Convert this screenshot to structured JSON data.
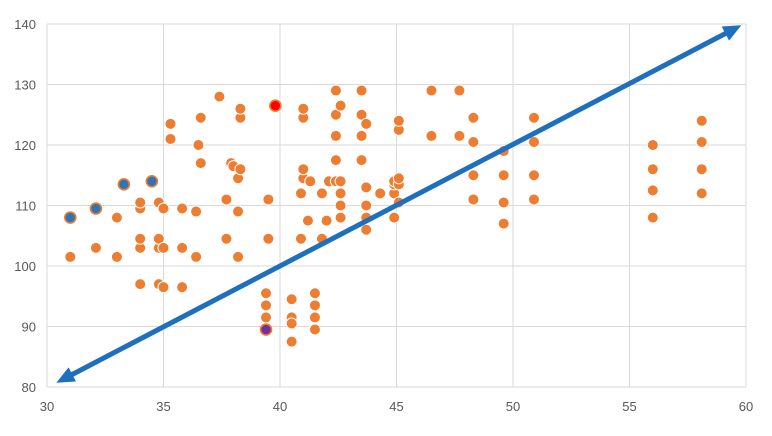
{
  "chart_data": {
    "type": "scatter",
    "xlim": [
      30,
      60
    ],
    "ylim": [
      80,
      140
    ],
    "x_ticks": [
      30,
      35,
      40,
      45,
      50,
      55,
      60
    ],
    "y_ticks": [
      80,
      90,
      100,
      110,
      120,
      130,
      140
    ],
    "grid": true,
    "colors": {
      "point_fill": "#ED7D31",
      "point_stroke": "#FFFFFF",
      "highlight_blue_fill": "#2E75B6",
      "highlight_blue_stroke": "#ED7D31",
      "highlight_red_fill": "#FF0000",
      "highlight_purple_fill": "#7030A0",
      "arrow": "#1F6FBF",
      "grid": "#D9D9D9",
      "tick_text": "#595959"
    },
    "points": [
      [
        31.0,
        101.5
      ],
      [
        32.1,
        103.0
      ],
      [
        33.0,
        101.5
      ],
      [
        33.0,
        108.0
      ],
      [
        34.0,
        97.0
      ],
      [
        34.0,
        103.0
      ],
      [
        34.0,
        104.5
      ],
      [
        34.0,
        109.5
      ],
      [
        34.0,
        110.5
      ],
      [
        34.8,
        97.0
      ],
      [
        34.8,
        103.0
      ],
      [
        34.8,
        104.5
      ],
      [
        34.8,
        110.5
      ],
      [
        35.0,
        96.5
      ],
      [
        35.0,
        103.0
      ],
      [
        35.0,
        109.5
      ],
      [
        35.3,
        121.0
      ],
      [
        35.3,
        123.5
      ],
      [
        35.8,
        96.5
      ],
      [
        35.8,
        103.0
      ],
      [
        35.8,
        109.5
      ],
      [
        36.4,
        101.5
      ],
      [
        36.4,
        109.0
      ],
      [
        36.5,
        120.0
      ],
      [
        36.6,
        124.5
      ],
      [
        36.6,
        117.0
      ],
      [
        37.4,
        128.0
      ],
      [
        37.7,
        104.5
      ],
      [
        37.7,
        111.0
      ],
      [
        37.9,
        117.0
      ],
      [
        38.0,
        116.5
      ],
      [
        38.2,
        101.5
      ],
      [
        38.2,
        109.0
      ],
      [
        38.2,
        114.5
      ],
      [
        38.3,
        116.0
      ],
      [
        38.3,
        124.5
      ],
      [
        38.3,
        126.0
      ],
      [
        39.5,
        104.5
      ],
      [
        39.5,
        111.0
      ],
      [
        39.4,
        95.5
      ],
      [
        39.4,
        93.5
      ],
      [
        39.4,
        91.5
      ],
      [
        40.5,
        94.5
      ],
      [
        40.5,
        91.5
      ],
      [
        40.5,
        90.5
      ],
      [
        40.5,
        87.5
      ],
      [
        40.9,
        104.5
      ],
      [
        40.9,
        112.0
      ],
      [
        41.0,
        114.5
      ],
      [
        41.0,
        116.0
      ],
      [
        41.0,
        124.5
      ],
      [
        41.0,
        126.0
      ],
      [
        41.2,
        107.5
      ],
      [
        41.3,
        114.0
      ],
      [
        41.5,
        95.5
      ],
      [
        41.5,
        93.5
      ],
      [
        41.5,
        91.5
      ],
      [
        41.5,
        89.5
      ],
      [
        41.8,
        104.5
      ],
      [
        41.8,
        112.0
      ],
      [
        42.0,
        107.5
      ],
      [
        42.1,
        114.0
      ],
      [
        42.4,
        114.0
      ],
      [
        42.4,
        117.5
      ],
      [
        42.4,
        121.5
      ],
      [
        42.4,
        125.0
      ],
      [
        42.4,
        129.0
      ],
      [
        42.6,
        108.0
      ],
      [
        42.6,
        110.0
      ],
      [
        42.6,
        112.0
      ],
      [
        42.6,
        114.0
      ],
      [
        42.6,
        126.5
      ],
      [
        43.5,
        117.5
      ],
      [
        43.5,
        121.5
      ],
      [
        43.5,
        125.0
      ],
      [
        43.5,
        129.0
      ],
      [
        43.7,
        106.0
      ],
      [
        43.7,
        108.0
      ],
      [
        43.7,
        110.0
      ],
      [
        43.7,
        113.0
      ],
      [
        43.7,
        123.5
      ],
      [
        44.3,
        112.0
      ],
      [
        44.9,
        108.0
      ],
      [
        44.9,
        112.0
      ],
      [
        44.9,
        113.5
      ],
      [
        44.9,
        114.0
      ],
      [
        45.1,
        110.5
      ],
      [
        45.1,
        113.5
      ],
      [
        45.1,
        114.5
      ],
      [
        45.1,
        122.5
      ],
      [
        45.1,
        124.0
      ],
      [
        46.5,
        121.5
      ],
      [
        46.5,
        129.0
      ],
      [
        47.7,
        121.5
      ],
      [
        47.7,
        129.0
      ],
      [
        48.3,
        111.0
      ],
      [
        48.3,
        115.0
      ],
      [
        48.3,
        120.5
      ],
      [
        48.3,
        124.5
      ],
      [
        49.6,
        107.0
      ],
      [
        49.6,
        110.5
      ],
      [
        49.6,
        115.0
      ],
      [
        49.6,
        119.0
      ],
      [
        50.9,
        111.0
      ],
      [
        50.9,
        115.0
      ],
      [
        50.9,
        120.5
      ],
      [
        50.9,
        124.5
      ],
      [
        56.0,
        108.0
      ],
      [
        56.0,
        112.5
      ],
      [
        56.0,
        116.0
      ],
      [
        56.0,
        120.0
      ],
      [
        58.1,
        112.0
      ],
      [
        58.1,
        116.0
      ],
      [
        58.1,
        120.5
      ],
      [
        58.1,
        124.0
      ]
    ],
    "highlight_points": [
      {
        "x": 31.0,
        "y": 108.0,
        "color": "blue"
      },
      {
        "x": 32.1,
        "y": 109.5,
        "color": "blue"
      },
      {
        "x": 33.3,
        "y": 113.5,
        "color": "blue"
      },
      {
        "x": 34.5,
        "y": 114.0,
        "color": "blue"
      },
      {
        "x": 39.8,
        "y": 126.5,
        "color": "red"
      },
      {
        "x": 39.4,
        "y": 89.5,
        "color": "purple"
      }
    ],
    "trend_arrow": {
      "from": [
        30.4,
        80.7
      ],
      "to": [
        59.8,
        139.8
      ],
      "double_headed": true
    }
  }
}
